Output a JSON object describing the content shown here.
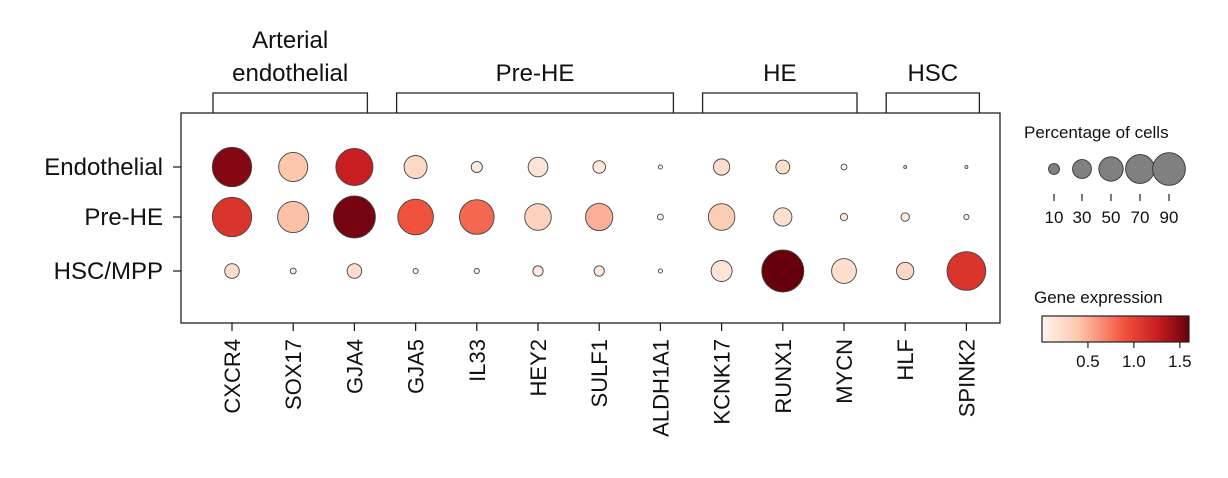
{
  "chart_data": {
    "type": "dot",
    "rows": [
      "Endothelial",
      "Pre-HE",
      "HSC/MPP"
    ],
    "genes": [
      "CXCR4",
      "SOX17",
      "GJA4",
      "GJA5",
      "IL33",
      "HEY2",
      "SULF1",
      "ALDH1A1",
      "KCNK17",
      "RUNX1",
      "MYCN",
      "HLF",
      "SPINK2"
    ],
    "gene_groups": [
      {
        "label_lines": [
          "Arterial",
          "endothelial"
        ],
        "start": 0,
        "end": 2
      },
      {
        "label_lines": [
          "Pre-HE"
        ],
        "start": 3,
        "end": 7
      },
      {
        "label_lines": [
          "HE"
        ],
        "start": 8,
        "end": 10
      },
      {
        "label_lines": [
          "HSC"
        ],
        "start": 11,
        "end": 12
      }
    ],
    "percentage": [
      [
        88,
        48,
        78,
        30,
        7,
        22,
        9,
        1,
        15,
        11,
        2,
        0.5,
        0.5
      ],
      [
        88,
        55,
        100,
        72,
        68,
        40,
        42,
        2,
        40,
        19,
        3,
        4,
        1.5
      ],
      [
        12,
        2,
        12,
        1.5,
        1.5,
        6,
        6,
        1,
        25,
        100,
        35,
        17,
        85
      ]
    ],
    "expression": [
      [
        1.5,
        0.4,
        1.25,
        0.25,
        0.08,
        0.15,
        0.12,
        0.05,
        0.2,
        0.2,
        0.05,
        0.02,
        0.02
      ],
      [
        1.1,
        0.42,
        1.55,
        0.9,
        0.8,
        0.3,
        0.5,
        0.05,
        0.35,
        0.18,
        0.1,
        0.1,
        0.05
      ],
      [
        0.2,
        0.1,
        0.2,
        0.05,
        0.05,
        0.1,
        0.1,
        0.02,
        0.15,
        1.6,
        0.2,
        0.25,
        1.1
      ]
    ],
    "size_legend": {
      "title": "Percentage of cells",
      "values": [
        10,
        30,
        50,
        70,
        90
      ]
    },
    "color_legend": {
      "title": "Gene expression",
      "range": [
        0,
        1.6
      ],
      "ticks": [
        0.5,
        1.0,
        1.5
      ],
      "tick_labels": [
        "0.5",
        "1.0",
        "1.5"
      ]
    },
    "colors": {
      "low": "#fff5ee",
      "mid": "#f2553f",
      "high": "#67000d",
      "size_swatch": "#808080"
    }
  }
}
